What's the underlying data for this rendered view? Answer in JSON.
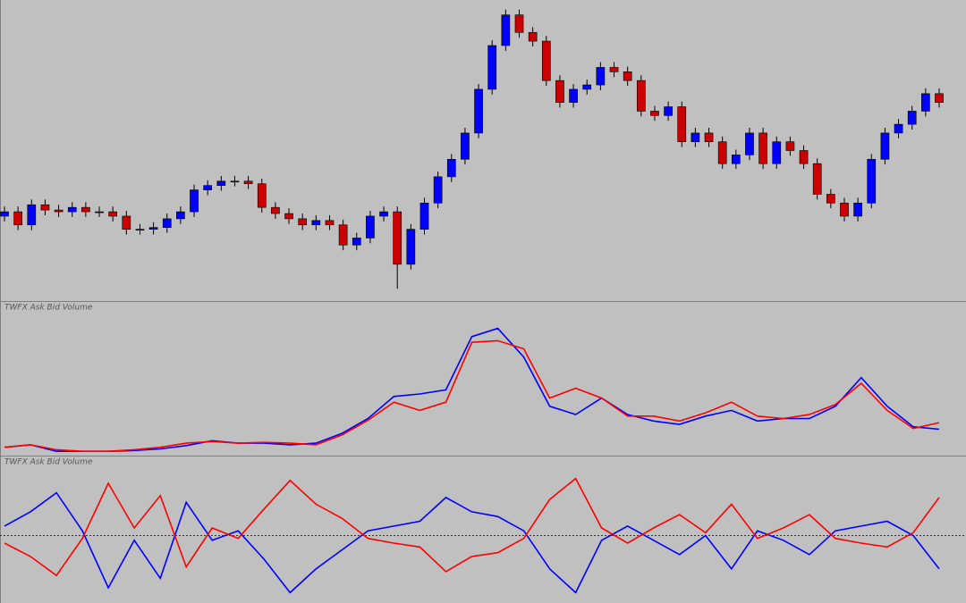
{
  "chart_data": [
    {
      "type": "candlestick",
      "ylim": [
        0,
        340
      ],
      "up_color": "#0000ff",
      "down_color": "#cc0000",
      "wick_color": "#000000",
      "open": [
        95,
        100,
        85,
        108,
        102,
        100,
        105,
        100,
        100,
        95,
        80,
        80,
        82,
        92,
        100,
        125,
        130,
        135,
        135,
        132,
        105,
        98,
        92,
        85,
        90,
        85,
        62,
        70,
        95,
        100,
        40,
        80,
        110,
        140,
        160,
        190,
        240,
        290,
        325,
        305,
        295,
        250,
        225,
        240,
        245,
        265,
        260,
        250,
        215,
        210,
        220,
        180,
        190,
        180,
        155,
        165,
        190,
        155,
        180,
        170,
        155,
        120,
        110,
        95,
        110,
        160,
        190,
        200,
        215,
        235
      ],
      "high": [
        106,
        106,
        114,
        114,
        108,
        111,
        111,
        106,
        106,
        101,
        86,
        88,
        98,
        106,
        131,
        136,
        141,
        141,
        141,
        138,
        111,
        104,
        98,
        96,
        96,
        91,
        76,
        101,
        106,
        106,
        86,
        116,
        146,
        166,
        196,
        246,
        296,
        331,
        331,
        311,
        301,
        256,
        246,
        251,
        271,
        271,
        266,
        256,
        221,
        226,
        226,
        196,
        196,
        186,
        171,
        196,
        196,
        186,
        186,
        176,
        161,
        126,
        116,
        116,
        166,
        196,
        206,
        221,
        241,
        241
      ],
      "low": [
        89,
        79,
        79,
        96,
        94,
        94,
        94,
        94,
        89,
        74,
        74,
        74,
        76,
        86,
        94,
        119,
        124,
        129,
        126,
        99,
        92,
        86,
        79,
        79,
        79,
        56,
        56,
        64,
        89,
        12,
        34,
        74,
        104,
        134,
        154,
        184,
        234,
        284,
        299,
        289,
        244,
        219,
        219,
        234,
        239,
        254,
        244,
        209,
        204,
        204,
        174,
        174,
        174,
        149,
        149,
        159,
        149,
        149,
        164,
        149,
        114,
        104,
        89,
        89,
        104,
        154,
        184,
        194,
        209,
        219
      ],
      "close": [
        100,
        85,
        108,
        102,
        100,
        105,
        100,
        100,
        95,
        80,
        80,
        82,
        92,
        100,
        125,
        130,
        135,
        135,
        132,
        105,
        98,
        92,
        85,
        90,
        85,
        62,
        70,
        95,
        100,
        40,
        80,
        110,
        140,
        160,
        190,
        240,
        290,
        325,
        305,
        295,
        250,
        225,
        240,
        245,
        265,
        260,
        250,
        215,
        210,
        220,
        180,
        190,
        180,
        155,
        165,
        190,
        155,
        180,
        170,
        155,
        120,
        110,
        95,
        110,
        160,
        190,
        200,
        215,
        235,
        225
      ]
    },
    {
      "type": "line",
      "title": "TWFX Ask Bid Volume",
      "ylim": [
        0,
        170
      ],
      "series": [
        {
          "color": "#0000ff",
          "values": [
            8,
            11,
            3,
            3,
            3,
            4,
            6,
            10,
            16,
            13,
            13,
            11,
            13,
            25,
            43,
            70,
            73,
            78,
            143,
            153,
            118,
            58,
            48,
            68,
            48,
            40,
            36,
            46,
            53,
            40,
            43,
            43,
            58,
            93,
            58,
            33,
            30
          ]
        },
        {
          "color": "#ff0000",
          "values": [
            8,
            11,
            5,
            3,
            3,
            5,
            8,
            13,
            15,
            13,
            14,
            13,
            11,
            23,
            41,
            63,
            53,
            63,
            136,
            138,
            128,
            68,
            80,
            68,
            46,
            46,
            40,
            50,
            63,
            46,
            43,
            48,
            60,
            86,
            53,
            31,
            38
          ]
        }
      ]
    },
    {
      "type": "line",
      "title": "TWFX Ask Bid Volume",
      "ylim": [
        -70,
        70
      ],
      "hline": 0,
      "series": [
        {
          "color": "#0000ff",
          "values": [
            10,
            25,
            45,
            5,
            -55,
            -5,
            -45,
            35,
            -5,
            5,
            -25,
            -60,
            -35,
            -15,
            5,
            10,
            15,
            40,
            25,
            20,
            5,
            -35,
            -60,
            -5,
            10,
            -5,
            -20,
            0,
            -35,
            5,
            -5,
            -20,
            5,
            10,
            15,
            0,
            -35
          ]
        },
        {
          "color": "#ff0000",
          "values": [
            -8,
            -22,
            -42,
            -3,
            55,
            8,
            42,
            -33,
            8,
            -3,
            28,
            58,
            33,
            18,
            -3,
            -8,
            -12,
            -38,
            -22,
            -18,
            -3,
            38,
            60,
            8,
            -8,
            8,
            22,
            3,
            33,
            -3,
            8,
            22,
            -3,
            -8,
            -12,
            3,
            40
          ]
        }
      ]
    }
  ]
}
